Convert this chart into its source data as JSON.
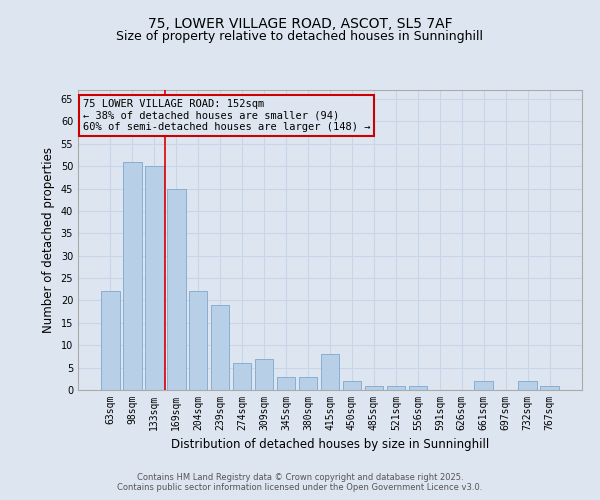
{
  "title1": "75, LOWER VILLAGE ROAD, ASCOT, SL5 7AF",
  "title2": "Size of property relative to detached houses in Sunninghill",
  "xlabel": "Distribution of detached houses by size in Sunninghill",
  "ylabel": "Number of detached properties",
  "categories": [
    "63sqm",
    "98sqm",
    "133sqm",
    "169sqm",
    "204sqm",
    "239sqm",
    "274sqm",
    "309sqm",
    "345sqm",
    "380sqm",
    "415sqm",
    "450sqm",
    "485sqm",
    "521sqm",
    "556sqm",
    "591sqm",
    "626sqm",
    "661sqm",
    "697sqm",
    "732sqm",
    "767sqm"
  ],
  "values": [
    22,
    51,
    50,
    45,
    22,
    19,
    6,
    7,
    3,
    3,
    8,
    2,
    1,
    1,
    1,
    0,
    0,
    2,
    0,
    2,
    1
  ],
  "bar_color": "#b8cfe8",
  "bar_edgecolor": "#88aed0",
  "grid_color": "#c8d4e8",
  "background_color": "#dde6f0",
  "vline_x": 2.5,
  "vline_color": "#dd0000",
  "annotation_text": "75 LOWER VILLAGE ROAD: 152sqm\n← 38% of detached houses are smaller (94)\n60% of semi-detached houses are larger (148) →",
  "annotation_box_edgecolor": "#cc0000",
  "ylim": [
    0,
    67
  ],
  "yticks": [
    0,
    5,
    10,
    15,
    20,
    25,
    30,
    35,
    40,
    45,
    50,
    55,
    60,
    65
  ],
  "footer": "Contains HM Land Registry data © Crown copyright and database right 2025.\nContains public sector information licensed under the Open Government Licence v3.0.",
  "title_fontsize": 10,
  "subtitle_fontsize": 9,
  "tick_fontsize": 7,
  "label_fontsize": 8.5,
  "annot_fontsize": 7.5,
  "footer_fontsize": 6
}
